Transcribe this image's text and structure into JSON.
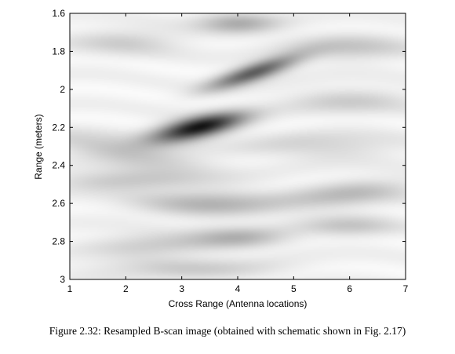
{
  "chart_data": {
    "type": "heatmap",
    "title": "",
    "xlabel": "Cross Range (Antenna locations)",
    "ylabel": "Range (meters)",
    "xlim": [
      1,
      7
    ],
    "ylim": [
      1.6,
      3.0
    ],
    "y_reversed": true,
    "x_ticks": [
      1,
      2,
      3,
      4,
      5,
      6,
      7
    ],
    "x_tick_labels": [
      "1",
      "2",
      "3",
      "4",
      "5",
      "6",
      "7"
    ],
    "y_ticks": [
      1.6,
      1.8,
      2.0,
      2.2,
      2.4,
      2.6,
      2.8,
      3.0
    ],
    "y_tick_labels": [
      "1.6",
      "1.8",
      "2",
      "2.2",
      "2.4",
      "2.6",
      "2.8",
      "3"
    ],
    "colormap": "grayscale",
    "grid": false,
    "intensity_features": [
      {
        "x": 3.3,
        "y": 2.2,
        "sx": 0.55,
        "sy": 0.04,
        "intensity": 0.95,
        "tilt": -0.06
      },
      {
        "x": 4.3,
        "y": 1.91,
        "sx": 0.55,
        "sy": 0.035,
        "intensity": 0.65,
        "tilt": -0.09
      },
      {
        "x": 4.0,
        "y": 1.65,
        "sx": 0.5,
        "sy": 0.04,
        "intensity": 0.28,
        "tilt": 0
      },
      {
        "x": 2.0,
        "y": 2.33,
        "sx": 1.0,
        "sy": 0.05,
        "intensity": 0.22,
        "tilt": 0.05
      },
      {
        "x": 2.0,
        "y": 2.48,
        "sx": 0.9,
        "sy": 0.04,
        "intensity": 0.2,
        "tilt": 0
      },
      {
        "x": 3.5,
        "y": 2.6,
        "sx": 0.9,
        "sy": 0.05,
        "intensity": 0.25,
        "tilt": 0
      },
      {
        "x": 6.0,
        "y": 2.55,
        "sx": 0.8,
        "sy": 0.05,
        "intensity": 0.22,
        "tilt": -0.03
      },
      {
        "x": 4.0,
        "y": 2.78,
        "sx": 0.6,
        "sy": 0.04,
        "intensity": 0.25,
        "tilt": 0
      },
      {
        "x": 6.0,
        "y": 2.72,
        "sx": 0.6,
        "sy": 0.04,
        "intensity": 0.18,
        "tilt": 0
      },
      {
        "x": 2.5,
        "y": 2.82,
        "sx": 0.8,
        "sy": 0.04,
        "intensity": 0.18,
        "tilt": 0
      },
      {
        "x": 2.0,
        "y": 1.75,
        "sx": 0.7,
        "sy": 0.05,
        "intensity": 0.15,
        "tilt": 0
      },
      {
        "x": 6.0,
        "y": 1.78,
        "sx": 0.8,
        "sy": 0.05,
        "intensity": 0.18,
        "tilt": 0
      },
      {
        "x": 6.0,
        "y": 2.06,
        "sx": 0.8,
        "sy": 0.05,
        "intensity": 0.15,
        "tilt": 0
      },
      {
        "x": 5.5,
        "y": 2.3,
        "sx": 1.0,
        "sy": 0.05,
        "intensity": 0.14,
        "tilt": 0
      },
      {
        "x": 3.0,
        "y": 2.95,
        "sx": 1.2,
        "sy": 0.04,
        "intensity": 0.16,
        "tilt": 0
      }
    ]
  },
  "caption": "Figure 2.32: Resampled B-scan image (obtained with schematic shown in Fig. 2.17)"
}
